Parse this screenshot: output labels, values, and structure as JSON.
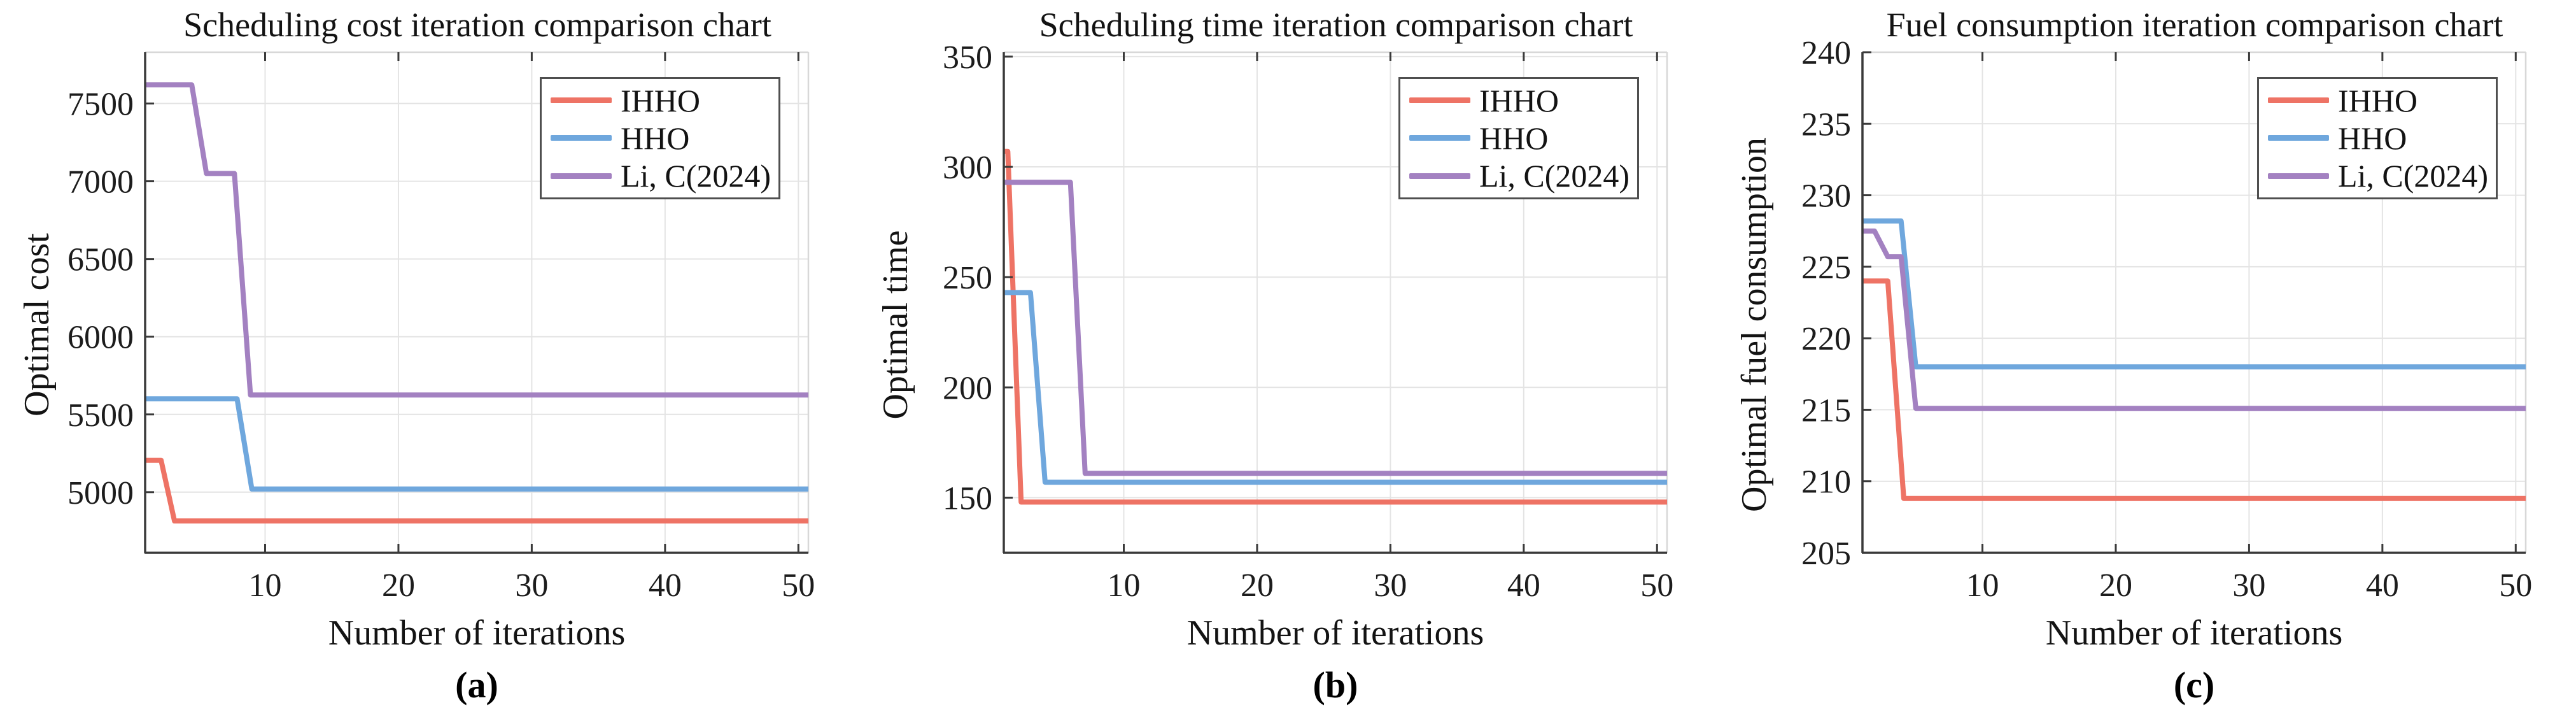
{
  "figure": {
    "description": "Three-panel algorithm convergence comparison figure",
    "background": "#ffffff"
  },
  "style_colors": {
    "axis": "#3a3a3a",
    "grid": "#e4e4e4",
    "box_border": "#d8d8d8",
    "tick_text": "#1c1c1c",
    "legend_border": "#4f4f4f",
    "legend_bg": "#ffffff"
  },
  "chart_data": [
    {
      "type": "line",
      "caption": "(a)",
      "title": "Scheduling cost iteration comparison chart",
      "xlabel": "Number of iterations",
      "ylabel": "Optimal cost",
      "xlim": [
        1,
        50.75
      ],
      "ylim": [
        4610,
        7830
      ],
      "xticks": [
        10,
        20,
        30,
        40,
        50
      ],
      "yticks": [
        5000,
        5500,
        6000,
        6500,
        7000,
        7500
      ],
      "grid": true,
      "legend_position": "top-right",
      "series": [
        {
          "name": "IHHO",
          "color": "#ee7365",
          "points": [
            [
              1,
              5205
            ],
            [
              2.2,
              5205
            ],
            [
              3.2,
              4815
            ],
            [
              50.75,
              4815
            ]
          ]
        },
        {
          "name": "HHO",
          "color": "#6fa7dd",
          "points": [
            [
              1,
              5600
            ],
            [
              7.9,
              5600
            ],
            [
              9,
              5020
            ],
            [
              50.75,
              5020
            ]
          ]
        },
        {
          "name": "Li, C(2024)",
          "color": "#a381c1",
          "points": [
            [
              1,
              7620
            ],
            [
              4.5,
              7620
            ],
            [
              5.6,
              7050
            ],
            [
              7.7,
              7050
            ],
            [
              8.9,
              5625
            ],
            [
              50.75,
              5625
            ]
          ]
        }
      ]
    },
    {
      "type": "line",
      "caption": "(b)",
      "title": "Scheduling time iteration comparison chart",
      "xlabel": "Number of iterations",
      "ylabel": "Optimal time",
      "xlim": [
        1,
        50.75
      ],
      "ylim": [
        125,
        352
      ],
      "xticks": [
        10,
        20,
        30,
        40,
        50
      ],
      "yticks": [
        150,
        200,
        250,
        300,
        350
      ],
      "grid": true,
      "legend_position": "top-right",
      "series": [
        {
          "name": "IHHO",
          "color": "#ee7365",
          "points": [
            [
              1,
              307
            ],
            [
              1.3,
              307
            ],
            [
              2.3,
              148
            ],
            [
              50.75,
              148
            ]
          ]
        },
        {
          "name": "HHO",
          "color": "#6fa7dd",
          "points": [
            [
              1,
              243
            ],
            [
              3,
              243
            ],
            [
              4.1,
              157
            ],
            [
              50.75,
              157
            ]
          ]
        },
        {
          "name": "Li, C(2024)",
          "color": "#a381c1",
          "points": [
            [
              1,
              293
            ],
            [
              6,
              293
            ],
            [
              7.1,
              161
            ],
            [
              50.75,
              161
            ]
          ]
        }
      ]
    },
    {
      "type": "line",
      "caption": "(c)",
      "title": "Fuel consumption iteration comparison chart",
      "xlabel": "Number of iterations",
      "ylabel": "Optimal fuel consumption",
      "xlim": [
        1,
        50.75
      ],
      "ylim": [
        205,
        240
      ],
      "xticks": [
        10,
        20,
        30,
        40,
        50
      ],
      "yticks": [
        205,
        210,
        215,
        220,
        225,
        230,
        235,
        240
      ],
      "grid": true,
      "legend_position": "top-right",
      "series": [
        {
          "name": "IHHO",
          "color": "#ee7365",
          "points": [
            [
              1,
              224
            ],
            [
              2.9,
              224
            ],
            [
              4.1,
              208.8
            ],
            [
              50.75,
              208.8
            ]
          ]
        },
        {
          "name": "HHO",
          "color": "#6fa7dd",
          "points": [
            [
              1,
              228.2
            ],
            [
              3.9,
              228.2
            ],
            [
              5,
              218
            ],
            [
              50.75,
              218
            ]
          ]
        },
        {
          "name": "Li, C(2024)",
          "color": "#a381c1",
          "points": [
            [
              1,
              227.5
            ],
            [
              1.9,
              227.5
            ],
            [
              2.9,
              225.7
            ],
            [
              3.9,
              225.7
            ],
            [
              5,
              215.1
            ],
            [
              50.75,
              215.1
            ]
          ]
        }
      ]
    }
  ]
}
